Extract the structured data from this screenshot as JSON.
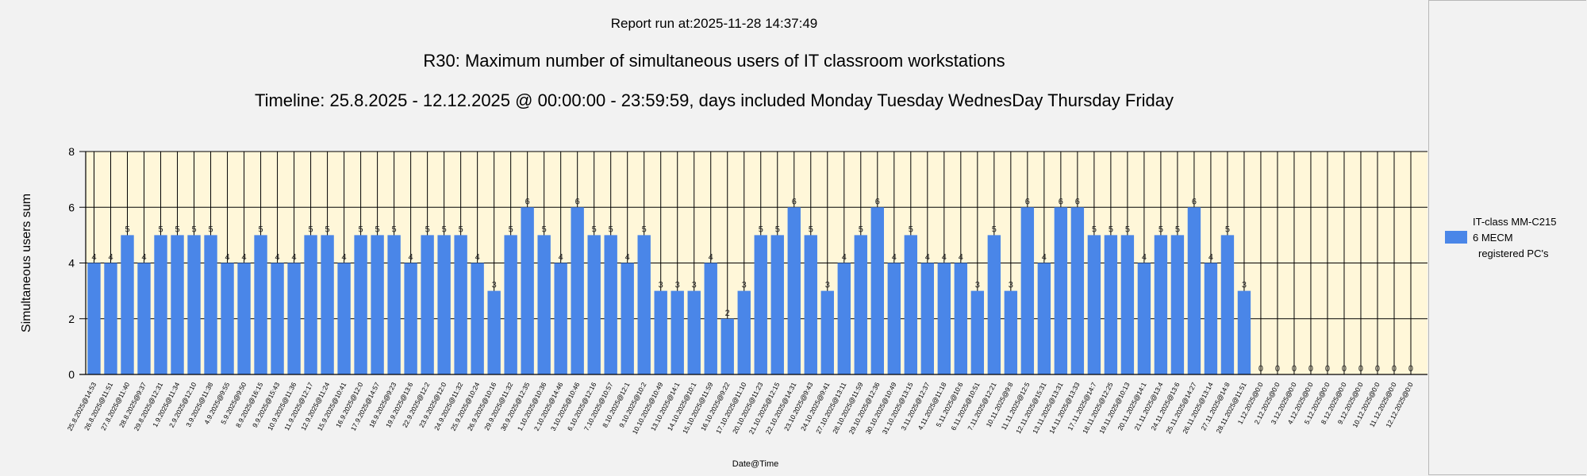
{
  "header": {
    "report_run": "Report run at:2025-11-28 14:37:49",
    "title": "R30: Maximum number of simultaneous users of IT classroom workstations",
    "timeline": "Timeline: 25.8.2025  - 12.12.2025  @  00:00:00 -  23:59:59, days included Monday Tuesday WednesDay Thursday Friday"
  },
  "legend": {
    "line1": "IT-class MM-C215",
    "line2": "6 MECM",
    "line3": "registered PC's",
    "position": "right"
  },
  "colors": {
    "bar": "#4a86e8",
    "plot_background": "#fff7d9",
    "grid": "#000000"
  },
  "chart_data": {
    "type": "bar",
    "xlabel": "Date@Time",
    "ylabel": "Simultaneous users sum",
    "ylim": [
      0,
      8
    ],
    "yticks": [
      0,
      2,
      4,
      6,
      8
    ],
    "grid": true,
    "categories": [
      "25.8.2025@14:53",
      "26.8.2025@11:51",
      "27.8.2025@11:40",
      "28.8.2025@9:37",
      "29.8.2025@12:31",
      "1.9.2025@11:34",
      "2.9.2025@12:10",
      "3.9.2025@11:38",
      "4.9.2025@9:55",
      "5.9.2025@9:50",
      "8.9.2025@16:15",
      "9.9.2025@15:43",
      "10.9.2025@11:36",
      "11.9.2025@12:17",
      "12.9.2025@11:24",
      "15.9.2025@10:41",
      "16.9.2025@12:0",
      "17.9.2025@14:57",
      "18.9.2025@9:23",
      "19.9.2025@13:6",
      "22.9.2025@12:2",
      "23.9.2025@12:0",
      "24.9.2025@11:32",
      "25.9.2025@10:24",
      "26.9.2025@10:16",
      "29.9.2025@11:32",
      "30.9.2025@12:35",
      "1.10.2025@10:36",
      "2.10.2025@14:46",
      "3.10.2025@10:46",
      "6.10.2025@12:16",
      "7.10.2025@10:57",
      "8.10.2025@12:1",
      "9.10.2025@10:2",
      "10.10.2025@10:49",
      "13.10.2025@14:1",
      "14.10.2025@10:1",
      "15.10.2025@11:59",
      "16.10.2025@9:22",
      "17.10.2025@11:10",
      "20.10.2025@11:23",
      "21.10.2025@12:15",
      "22.10.2025@14:31",
      "23.10.2025@9:43",
      "24.10.2025@9:41",
      "27.10.2025@13:11",
      "28.10.2025@11:59",
      "29.10.2025@12:36",
      "30.10.2025@10:49",
      "31.10.2025@13:15",
      "3.11.2025@12:37",
      "4.11.2025@11:18",
      "5.11.2025@10:6",
      "6.11.2025@10:51",
      "7.11.2025@12:21",
      "10.11.2025@9:8",
      "11.11.2025@12:5",
      "12.11.2025@15:31",
      "13.11.2025@13:31",
      "14.11.2025@13:33",
      "17.11.2025@14:7",
      "18.11.2025@12:25",
      "19.11.2025@10:13",
      "20.11.2025@14:1",
      "21.11.2025@13:4",
      "24.11.2025@13:6",
      "25.11.2025@14:27",
      "26.11.2025@13:14",
      "27.11.2025@14:8",
      "28.11.2025@11:51",
      "1.12.2025@0:0",
      "2.12.2025@0:0",
      "3.12.2025@0:0",
      "4.12.2025@0:0",
      "5.12.2025@0:0",
      "8.12.2025@0:0",
      "9.12.2025@0:0",
      "10.12.2025@0:0",
      "11.12.2025@0:0",
      "12.12.2025@0:0"
    ],
    "series": [
      {
        "values": [
          4,
          4,
          5,
          4,
          5,
          5,
          5,
          5,
          4,
          4,
          5,
          4,
          4,
          5,
          5,
          4,
          5,
          5,
          5,
          4,
          5,
          5,
          5,
          4,
          3,
          5,
          6,
          5,
          4,
          6,
          5,
          5,
          4,
          5,
          3,
          3,
          3,
          4,
          2,
          3,
          5,
          5,
          6,
          5,
          3,
          4,
          5,
          6,
          4,
          5,
          4,
          4,
          4,
          3,
          5,
          3,
          6,
          4,
          6,
          6,
          5,
          5,
          5,
          4,
          5,
          5,
          6,
          4,
          5,
          3,
          0,
          0,
          0,
          0,
          0,
          0,
          0,
          0,
          0,
          0
        ]
      }
    ]
  }
}
